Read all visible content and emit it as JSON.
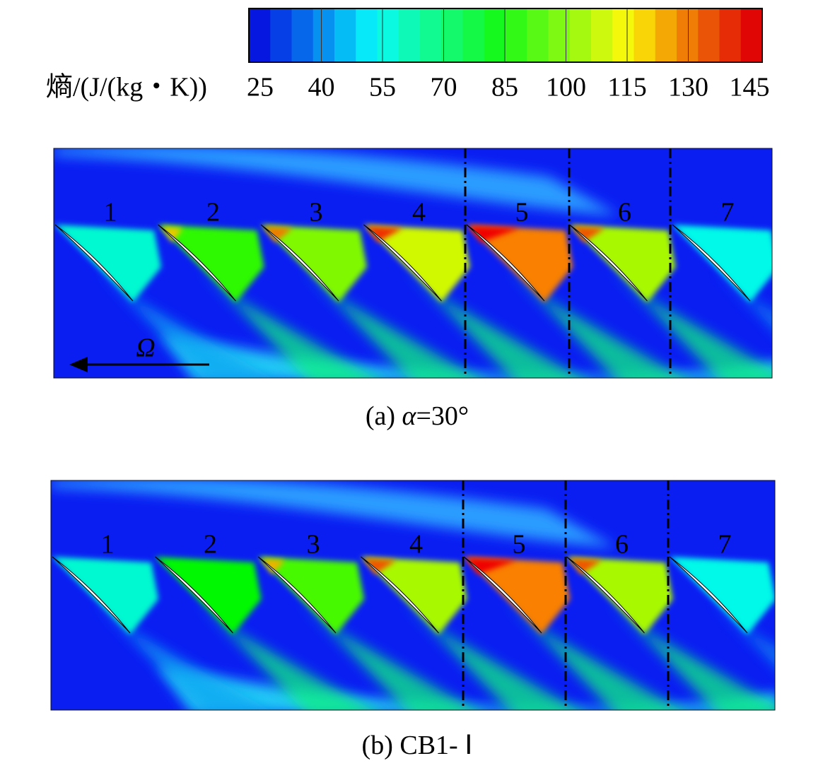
{
  "colorbar": {
    "label": "熵/(J/(kg・K))",
    "ticks": [
      25,
      40,
      55,
      70,
      85,
      100,
      115,
      130,
      145
    ]
  },
  "panels": [
    {
      "blade_labels": [
        "1",
        "2",
        "3",
        "4",
        "5",
        "6",
        "7"
      ],
      "rotation_symbol": "Ω",
      "caption": [
        "(a)",
        "α",
        "=30°"
      ]
    },
    {
      "blade_labels": [
        "1",
        "2",
        "3",
        "4",
        "5",
        "6",
        "7"
      ],
      "caption": [
        "(b)",
        "CB1-",
        "Ⅰ"
      ]
    }
  ]
}
